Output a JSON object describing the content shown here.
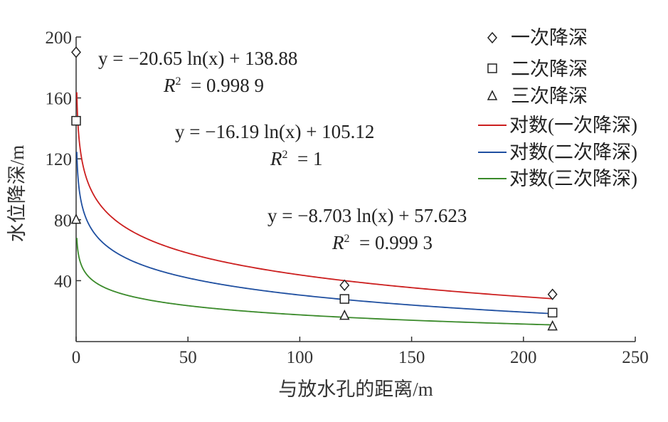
{
  "chart_data": {
    "type": "scatter",
    "xlabel": "与放水孔的距离/m",
    "ylabel": "水位降深/m",
    "xlim": [
      0,
      250
    ],
    "ylim": [
      0,
      200
    ],
    "x_ticks": [
      0,
      50,
      100,
      150,
      200,
      250
    ],
    "y_ticks": [
      40,
      80,
      120,
      160,
      200
    ],
    "grid": false,
    "legend_position": "top-right",
    "series": [
      {
        "name": "一次降深",
        "marker": "diamond",
        "points": [
          {
            "x": 0,
            "y": 190
          },
          {
            "x": 120,
            "y": 37
          },
          {
            "x": 213,
            "y": 31
          }
        ]
      },
      {
        "name": "二次降深",
        "marker": "square",
        "points": [
          {
            "x": 0,
            "y": 145
          },
          {
            "x": 120,
            "y": 28
          },
          {
            "x": 213,
            "y": 19
          }
        ]
      },
      {
        "name": "三次降深",
        "marker": "triangle",
        "points": [
          {
            "x": 0,
            "y": 80
          },
          {
            "x": 120,
            "y": 17
          },
          {
            "x": 213,
            "y": 10
          }
        ]
      }
    ],
    "trendlines": [
      {
        "name": "对数(一次降深)",
        "color": "#cc1f1f",
        "a": -20.65,
        "b": 138.88,
        "x_range": [
          0.3,
          213
        ],
        "equation": "y = −20.65 ln(x) + 138.88",
        "r2_label": "= 0.998 9"
      },
      {
        "name": "对数(二次降深)",
        "color": "#1f4fa0",
        "a": -16.19,
        "b": 105.12,
        "x_range": [
          0.3,
          213
        ],
        "equation": "y = −16.19 ln(x) + 105.12",
        "r2_label": "= 1"
      },
      {
        "name": "对数(三次降深)",
        "color": "#3a8a2a",
        "a": -8.703,
        "b": 57.623,
        "x_range": [
          0.3,
          213
        ],
        "equation": "y = −8.703 ln(x) + 57.623",
        "r2_label": "= 0.999 3"
      }
    ]
  }
}
